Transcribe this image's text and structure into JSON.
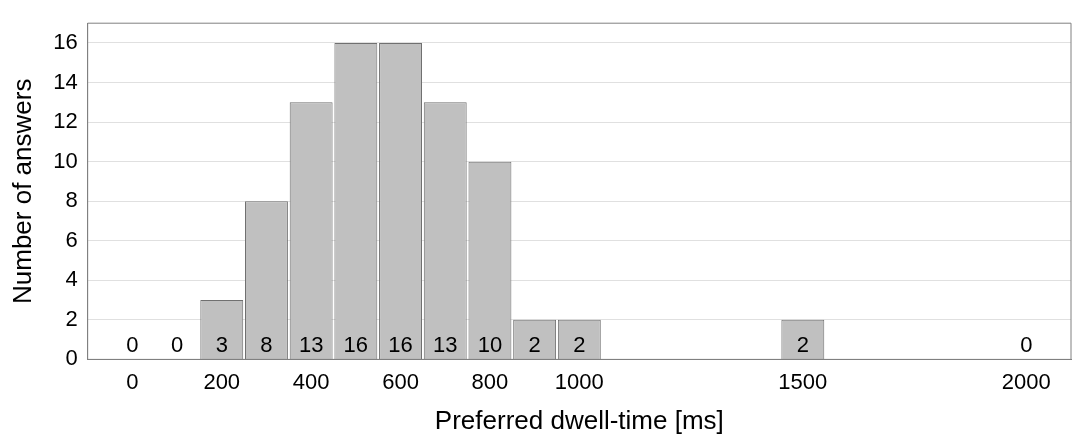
{
  "chart_data": {
    "type": "bar",
    "xlabel": "Preferred dwell-time [ms]",
    "ylabel": "Number of answers",
    "x": [
      0,
      100,
      200,
      300,
      400,
      500,
      600,
      700,
      800,
      900,
      1000,
      1500,
      2000
    ],
    "values": [
      0,
      0,
      3,
      8,
      13,
      16,
      16,
      13,
      10,
      2,
      2,
      2,
      0
    ],
    "color": "#c0c0c0",
    "xlim": [
      -100,
      2100
    ],
    "xticks": [
      0,
      200,
      400,
      600,
      800,
      1000,
      1500,
      2000
    ],
    "ylim": [
      0,
      17
    ],
    "yticks": [
      0,
      2,
      4,
      6,
      8,
      10,
      12,
      14,
      16
    ],
    "data_labels": true,
    "grid": "y",
    "legend": false
  }
}
